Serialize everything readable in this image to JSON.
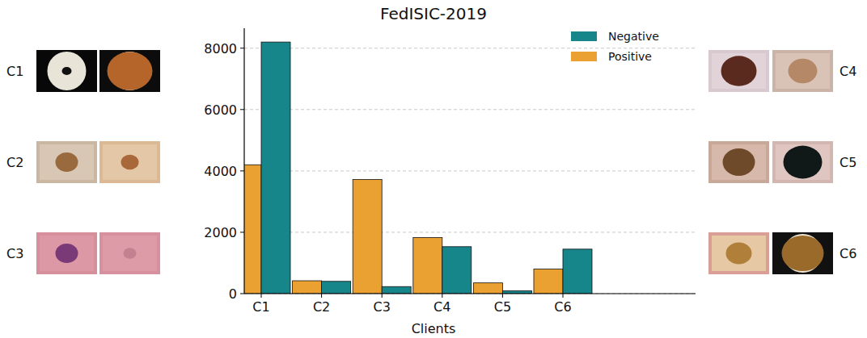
{
  "chart_data": {
    "type": "bar",
    "title": "FedISIC-2019",
    "x_label": "Clients",
    "categories": [
      "C1",
      "C2",
      "C3",
      "C4",
      "C5",
      "C6"
    ],
    "series": [
      {
        "name": "Positive",
        "color": "#eba131",
        "values": [
          4200,
          420,
          3720,
          1830,
          350,
          800
        ]
      },
      {
        "name": "Negative",
        "color": "#17868b",
        "values": [
          8200,
          400,
          230,
          1530,
          90,
          1450
        ]
      }
    ],
    "ylim": [
      0,
      8650
    ],
    "yticks": [
      0,
      2000,
      4000,
      6000,
      8000
    ],
    "grid": true,
    "legend": "upper right"
  }
}
